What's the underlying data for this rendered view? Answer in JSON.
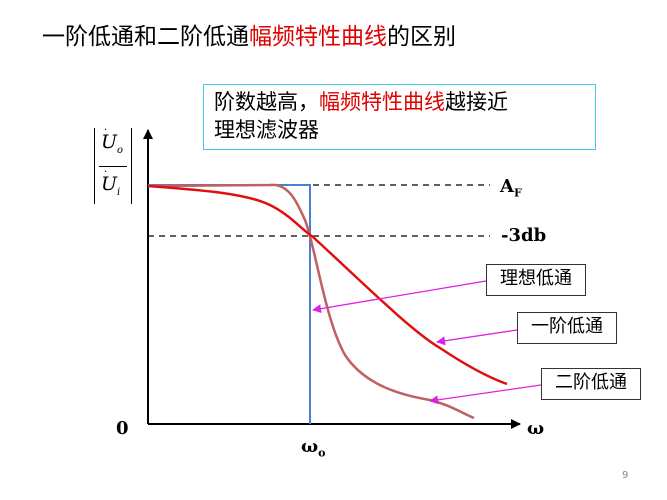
{
  "title": {
    "part1": "一阶低通和二阶低通",
    "highlight": "幅频特性曲线",
    "part2": "的区别"
  },
  "callout": {
    "line1_part1": "阶数越高，",
    "line1_highlight": "幅频特性曲线",
    "line1_part2": "越接近",
    "line2": "理想滤波器"
  },
  "axes": {
    "y_label_numerator": "U",
    "y_label_numerator_sub": "o",
    "y_label_denominator": "U",
    "y_label_denominator_sub": "i",
    "origin": "0",
    "x_label": "ω",
    "x_tick_main": "ω",
    "x_tick_sub": "o"
  },
  "levels": {
    "af_main": "A",
    "af_sub": "F",
    "minus3db": "-3db"
  },
  "legend": {
    "ideal": "理想低通",
    "first_order": "一阶低通",
    "second_order": "二阶低通"
  },
  "colors": {
    "highlight": "#e00000",
    "ideal": "#4a7fd4",
    "first_order": "#e01010",
    "second_order": "#c06060",
    "arrow": "#e020e0",
    "callout_border": "#3fcfe0"
  },
  "page_number": "9"
}
